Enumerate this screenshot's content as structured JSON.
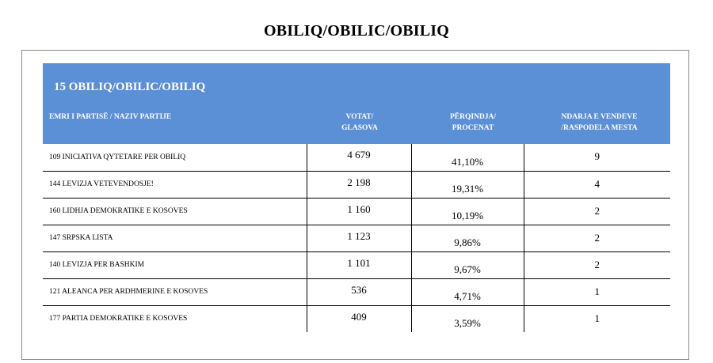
{
  "page_title": "OBILIQ/OBILIC/OBILIQ",
  "district": {
    "title": "15  OBILIQ/OBILIC/OBILIQ",
    "header_color": "#5b8fd6"
  },
  "columns": {
    "party": "EMRI I PARTISË / NAZIV PARTIJE",
    "votes_line1": "VOTAT/",
    "votes_line2": "GLASOVA",
    "percent_line1": "PËRQINDJA/",
    "percent_line2": "PROCENAT",
    "seats_line1": "NDARJA E VENDEVE",
    "seats_line2": "/RASPODELA MESTA"
  },
  "rows": [
    {
      "party": "109 INICIATIVA QYTETARE PER OBILIQ",
      "votes": "4 679",
      "percent": "41,10%",
      "seats": "9"
    },
    {
      "party": "144 LEVIZJA VETEVENDOSJE!",
      "votes": "2 198",
      "percent": "19,31%",
      "seats": "4"
    },
    {
      "party": "160 LIDHJA DEMOKRATIKE E KOSOVES",
      "votes": "1 160",
      "percent": "10,19%",
      "seats": "2"
    },
    {
      "party": "147 SRPSKA LISTA",
      "votes": "1 123",
      "percent": "9,86%",
      "seats": "2"
    },
    {
      "party": "140 LEVIZJA PER BASHKIM",
      "votes": "1 101",
      "percent": "9,67%",
      "seats": "2"
    },
    {
      "party": "121 ALEANCA PER ARDHMERINE E KOSOVES",
      "votes": "536",
      "percent": "4,71%",
      "seats": "1"
    },
    {
      "party": "177 PARTIA DEMOKRATIKE E KOSOVES",
      "votes": "409",
      "percent": "3,59%",
      "seats": "1"
    }
  ]
}
